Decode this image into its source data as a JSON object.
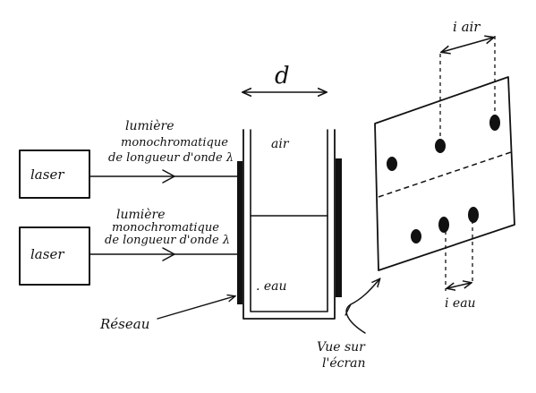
{
  "lasers": [
    {
      "label": "laser"
    },
    {
      "label": "laser"
    }
  ],
  "beams": [
    {
      "line1": "lumière",
      "line2": "monochromatique",
      "line3": "de longueur d'onde λ"
    },
    {
      "line1": "lumière",
      "line2": "monochromatique",
      "line3": "de longueur d'onde λ"
    }
  ],
  "cell": {
    "width_label": "d",
    "top_label": "air",
    "bottom_label": ". eau"
  },
  "grating_label": "Réseau",
  "screen": {
    "air_spacing_label": "i air",
    "water_spacing_label": "i eau",
    "view_label_line1": "Vue sur",
    "view_label_line2": "l'écran"
  }
}
